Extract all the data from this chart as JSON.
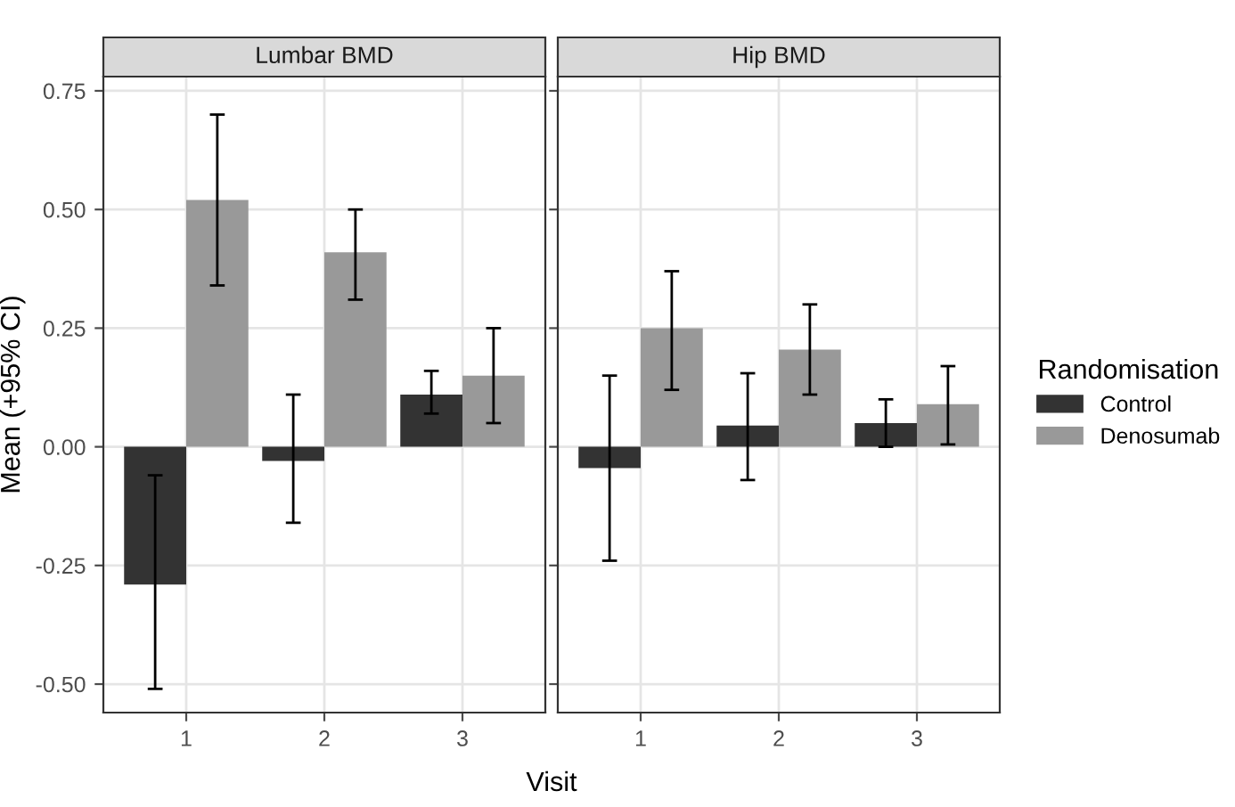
{
  "chart_data": [
    {
      "type": "bar",
      "title": "Lumbar BMD",
      "xlabel": "Visit",
      "ylabel": "Mean (+95% CI)",
      "legend_title": "Randomisation",
      "legend": "right",
      "grid": true,
      "categories": [
        "1",
        "2",
        "3"
      ],
      "ylim": [
        -0.56,
        0.78
      ],
      "yticks": [
        {
          "value": -0.5,
          "label": "-0.50"
        },
        {
          "value": -0.25,
          "label": "-0.25"
        },
        {
          "value": 0,
          "label": "0.00"
        },
        {
          "value": 0.25,
          "label": "0.25"
        },
        {
          "value": 0.5,
          "label": "0.50"
        },
        {
          "value": 0.75,
          "label": "0.75"
        }
      ],
      "series": [
        {
          "name": "Control",
          "color": "#333333",
          "values": [
            -0.29,
            -0.03,
            0.11
          ],
          "errors": [
            [
              -0.51,
              -0.06
            ],
            [
              -0.16,
              0.11
            ],
            [
              0.07,
              0.16
            ]
          ]
        },
        {
          "name": "Denosumab",
          "color": "#999999",
          "values": [
            0.52,
            0.41,
            0.15
          ],
          "errors": [
            [
              0.34,
              0.7
            ],
            [
              0.31,
              0.5
            ],
            [
              0.05,
              0.25
            ]
          ]
        }
      ]
    },
    {
      "type": "bar",
      "title": "Hip BMD",
      "grid": true,
      "tick_labels": "x",
      "categories": [
        "1",
        "2",
        "3"
      ],
      "ylim": [
        -0.56,
        0.78
      ],
      "yticks": [
        -0.5,
        -0.25,
        0,
        0.25,
        0.5,
        0.75
      ],
      "series": [
        {
          "color": "#333333",
          "values": [
            -0.045,
            0.045,
            0.05
          ],
          "errors": [
            [
              -0.24,
              0.15
            ],
            [
              -0.07,
              0.155
            ],
            [
              0.0,
              0.1
            ]
          ]
        },
        {
          "color": "#999999",
          "values": [
            0.25,
            0.205,
            0.09
          ],
          "errors": [
            [
              0.12,
              0.37
            ],
            [
              0.11,
              0.3
            ],
            [
              0.005,
              0.17
            ]
          ]
        }
      ]
    }
  ]
}
